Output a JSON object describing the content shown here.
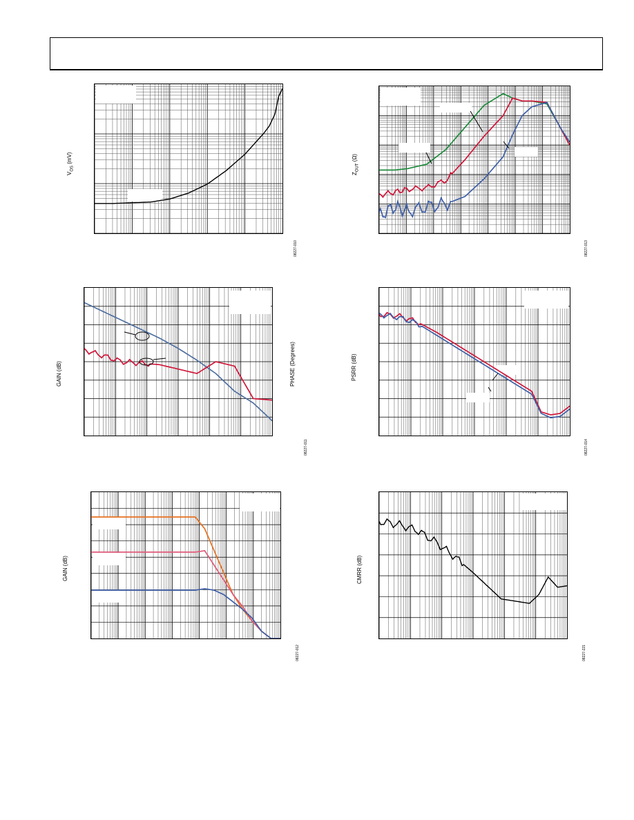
{
  "header": {
    "text": ""
  },
  "charts": [
    {
      "id": "p1",
      "ylabel": "V",
      "ylabel_sub": "OS",
      "ylabel_tail": " (mV)",
      "figure_id": "08227-010",
      "colors": [
        "#000000"
      ]
    },
    {
      "id": "p2",
      "ylabel": "Z",
      "ylabel_sub": "OUT",
      "ylabel_tail": " (Ω)",
      "figure_id": "08227-013",
      "colors": [
        "#1e8a3c",
        "#d0163a",
        "#3f5fa8"
      ]
    },
    {
      "id": "p3",
      "ylabel": "GAIN (dB)",
      "ylabel_right": "PHASE (Degrees)",
      "figure_id": "08227-011",
      "colors": [
        "#4f6fa0",
        "#d0163a"
      ]
    },
    {
      "id": "p4",
      "ylabel": "PSRR (dB)",
      "figure_id": "08227-014",
      "colors": [
        "#d0163a",
        "#3f5fa8"
      ]
    },
    {
      "id": "p5",
      "ylabel": "GAIN (dB)",
      "figure_id": "08227-012",
      "colors": [
        "#e8701e",
        "#e05a78",
        "#3f5fa8"
      ]
    },
    {
      "id": "p6",
      "ylabel": "CMRR (dB)",
      "figure_id": "08227-221",
      "colors": [
        "#000000"
      ]
    }
  ],
  "chart_data": [
    {
      "type": "line",
      "title": "",
      "xscale": "log",
      "grid": true,
      "x": [
        0.0,
        0.1,
        0.2,
        0.3,
        0.4,
        0.5,
        0.6,
        0.7,
        0.8,
        0.85,
        0.9,
        0.93,
        0.96,
        0.98,
        1.0
      ],
      "series": [
        {
          "values": [
            0.2,
            0.2,
            0.205,
            0.21,
            0.23,
            0.27,
            0.33,
            0.42,
            0.53,
            0.6,
            0.67,
            0.72,
            0.8,
            0.92,
            0.97
          ]
        }
      ]
    },
    {
      "type": "line",
      "title": "",
      "xscale": "log",
      "yscale": "log",
      "grid": true,
      "series": [
        {
          "values": [
            0.43,
            0.43,
            0.44,
            0.47,
            0.57,
            0.72,
            0.87,
            0.95,
            0.92,
            0.9,
            0.9,
            0.88,
            0.72,
            0.6
          ]
        },
        {
          "values": [
            0.26,
            0.28,
            0.3,
            0.31,
            0.36,
            0.5,
            0.66,
            0.8,
            0.92,
            0.9,
            0.9,
            0.89,
            0.72,
            0.6
          ]
        },
        {
          "values": [
            0.12,
            0.18,
            0.15,
            0.18,
            0.2,
            0.25,
            0.37,
            0.52,
            0.67,
            0.8,
            0.86,
            0.89,
            0.72,
            0.62
          ]
        }
      ],
      "x": [
        0.0,
        0.08,
        0.15,
        0.25,
        0.35,
        0.45,
        0.55,
        0.65,
        0.7,
        0.75,
        0.8,
        0.88,
        0.95,
        1.0
      ]
    },
    {
      "type": "line",
      "title": "",
      "xscale": "log",
      "grid": true,
      "x": [
        0.0,
        0.1,
        0.2,
        0.3,
        0.4,
        0.5,
        0.6,
        0.7,
        0.8,
        0.9,
        1.0
      ],
      "series": [
        {
          "values": [
            0.9,
            0.84,
            0.78,
            0.72,
            0.66,
            0.59,
            0.51,
            0.42,
            0.3,
            0.22,
            0.1
          ]
        },
        {
          "values": [
            0.58,
            0.54,
            0.5,
            0.49,
            0.48,
            0.45,
            0.42,
            0.5,
            0.47,
            0.25,
            0.24
          ]
        }
      ]
    },
    {
      "type": "line",
      "title": "",
      "xscale": "log",
      "grid": true,
      "x": [
        0.0,
        0.1,
        0.2,
        0.3,
        0.4,
        0.5,
        0.6,
        0.7,
        0.75,
        0.8,
        0.85,
        0.9,
        0.95,
        1.0
      ],
      "series": [
        {
          "values": [
            0.82,
            0.81,
            0.77,
            0.7,
            0.62,
            0.54,
            0.46,
            0.38,
            0.34,
            0.3,
            0.16,
            0.14,
            0.15,
            0.2
          ]
        },
        {
          "values": [
            0.82,
            0.8,
            0.76,
            0.68,
            0.6,
            0.52,
            0.44,
            0.36,
            0.32,
            0.28,
            0.15,
            0.12,
            0.13,
            0.18
          ]
        }
      ]
    },
    {
      "type": "line",
      "title": "",
      "xscale": "log",
      "grid": true,
      "x": [
        0.0,
        0.2,
        0.4,
        0.55,
        0.6,
        0.65,
        0.7,
        0.75,
        0.8,
        0.85,
        0.9,
        0.95,
        1.0
      ],
      "series": [
        {
          "values": [
            0.83,
            0.83,
            0.83,
            0.83,
            0.75,
            0.6,
            0.45,
            0.3,
            0.2,
            0.12,
            0.05,
            0.0,
            0.0
          ]
        },
        {
          "values": [
            0.59,
            0.59,
            0.59,
            0.59,
            0.6,
            0.5,
            0.4,
            0.3,
            0.22,
            0.12,
            0.05,
            0.0,
            0.0
          ]
        },
        {
          "values": [
            0.33,
            0.33,
            0.33,
            0.33,
            0.34,
            0.33,
            0.3,
            0.25,
            0.2,
            0.14,
            0.05,
            0.0,
            0.0
          ]
        }
      ]
    },
    {
      "type": "line",
      "title": "",
      "xscale": "log",
      "grid": true,
      "x": [
        0.0,
        0.1,
        0.2,
        0.3,
        0.4,
        0.5,
        0.6,
        0.65,
        0.7,
        0.8,
        0.85,
        0.9,
        0.95,
        1.0
      ],
      "series": [
        {
          "values": [
            0.8,
            0.78,
            0.74,
            0.66,
            0.56,
            0.45,
            0.33,
            0.27,
            0.26,
            0.24,
            0.3,
            0.42,
            0.35,
            0.36
          ]
        }
      ]
    }
  ]
}
